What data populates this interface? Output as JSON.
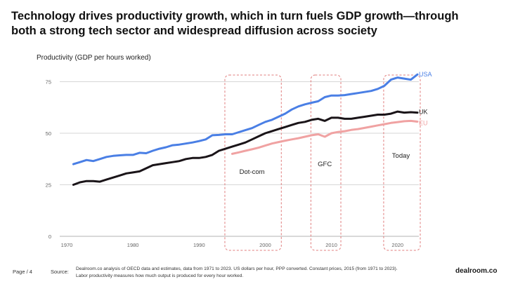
{
  "title": {
    "line1": "Technology drives productivity growth, which in turn fuels GDP growth—through",
    "line2": "both a strong tech sector and widespread diffusion across society"
  },
  "footer": {
    "page": "Page / 4",
    "source_label": "Source:",
    "source_line1": "Dealroom.co analysis of OECD data and estimates, data from  1971 to 2023. US dollars per hour, PPP converted. Constant prices, 2015 (from  1971 to 2023).",
    "source_line2": "Labor productivity measures how much output is produced for every hour worked.",
    "brand": "dealroom.co"
  },
  "chart_data": {
    "type": "line",
    "ylabel": "Productivity (GDP per hours worked)",
    "xlim": [
      1970,
      2024
    ],
    "ylim": [
      0,
      80
    ],
    "y_ticks": [
      0,
      25,
      50,
      75
    ],
    "x_ticks": [
      1970,
      1980,
      1990,
      2000,
      2010,
      2020
    ],
    "grid": "horizontal",
    "series": [
      {
        "name": "USA",
        "color": "#4a7fe5",
        "x": [
          1971,
          1972,
          1973,
          1974,
          1975,
          1976,
          1977,
          1978,
          1979,
          1980,
          1981,
          1982,
          1983,
          1984,
          1985,
          1986,
          1987,
          1988,
          1989,
          1990,
          1991,
          1992,
          1993,
          1994,
          1995,
          1996,
          1997,
          1998,
          1999,
          2000,
          2001,
          2002,
          2003,
          2004,
          2005,
          2006,
          2007,
          2008,
          2009,
          2010,
          2011,
          2012,
          2013,
          2014,
          2015,
          2016,
          2017,
          2018,
          2019,
          2020,
          2021,
          2022,
          2023
        ],
        "y": [
          35,
          36,
          37,
          36.5,
          37.5,
          38.5,
          39,
          39.3,
          39.5,
          39.5,
          40.5,
          40.3,
          41.5,
          42.5,
          43.2,
          44.2,
          44.5,
          45,
          45.5,
          46.2,
          47,
          49,
          49.2,
          49.5,
          49.5,
          50.5,
          51.5,
          52.5,
          54,
          55.5,
          56.5,
          58,
          59.5,
          61.5,
          63,
          64,
          64.8,
          65.5,
          67.5,
          68.3,
          68.3,
          68.5,
          69,
          69.5,
          70,
          70.5,
          71.5,
          73,
          76,
          77,
          76.5,
          76,
          78.5
        ]
      },
      {
        "name": "UK",
        "color": "#1a1418",
        "x": [
          1971,
          1972,
          1973,
          1974,
          1975,
          1976,
          1977,
          1978,
          1979,
          1980,
          1981,
          1982,
          1983,
          1984,
          1985,
          1986,
          1987,
          1988,
          1989,
          1990,
          1991,
          1992,
          1993,
          1994,
          1995,
          1996,
          1997,
          1998,
          1999,
          2000,
          2001,
          2002,
          2003,
          2004,
          2005,
          2006,
          2007,
          2008,
          2009,
          2010,
          2011,
          2012,
          2013,
          2014,
          2015,
          2016,
          2017,
          2018,
          2019,
          2020,
          2021,
          2022,
          2023
        ],
        "y": [
          25,
          26.2,
          26.8,
          26.8,
          26.5,
          27.5,
          28.5,
          29.5,
          30.5,
          31,
          31.5,
          33,
          34.5,
          35,
          35.5,
          36,
          36.5,
          37.5,
          38,
          38,
          38.5,
          39.5,
          41.5,
          42.5,
          43.5,
          44.5,
          45.5,
          47,
          48.5,
          50,
          51,
          52,
          53,
          54,
          55,
          55.5,
          56.5,
          57,
          56,
          57.5,
          57.5,
          57,
          57,
          57.5,
          58,
          58.5,
          59,
          59,
          59.5,
          60.5,
          60,
          60.2,
          60
        ]
      },
      {
        "name": "EU",
        "color": "#f0a2a2",
        "x": [
          1995,
          1996,
          1997,
          1998,
          1999,
          2000,
          2001,
          2002,
          2003,
          2004,
          2005,
          2006,
          2007,
          2008,
          2009,
          2010,
          2011,
          2012,
          2013,
          2014,
          2015,
          2016,
          2017,
          2018,
          2019,
          2020,
          2021,
          2022,
          2023
        ],
        "y": [
          40,
          40.7,
          41.5,
          42.2,
          43,
          44,
          45,
          45.7,
          46.4,
          47,
          47.6,
          48.3,
          49,
          49.5,
          48.3,
          50,
          50.6,
          51,
          51.6,
          52,
          52.6,
          53.2,
          53.8,
          54.4,
          55,
          55.4,
          55.8,
          56,
          55.6
        ]
      }
    ],
    "annotations": [
      {
        "label": "Dot-com",
        "x_start": 1994,
        "x_end": 2002
      },
      {
        "label": "GFC",
        "x_start": 2007,
        "x_end": 2011
      },
      {
        "label": "Today",
        "x_start": 2018,
        "x_end": 2023
      }
    ]
  }
}
